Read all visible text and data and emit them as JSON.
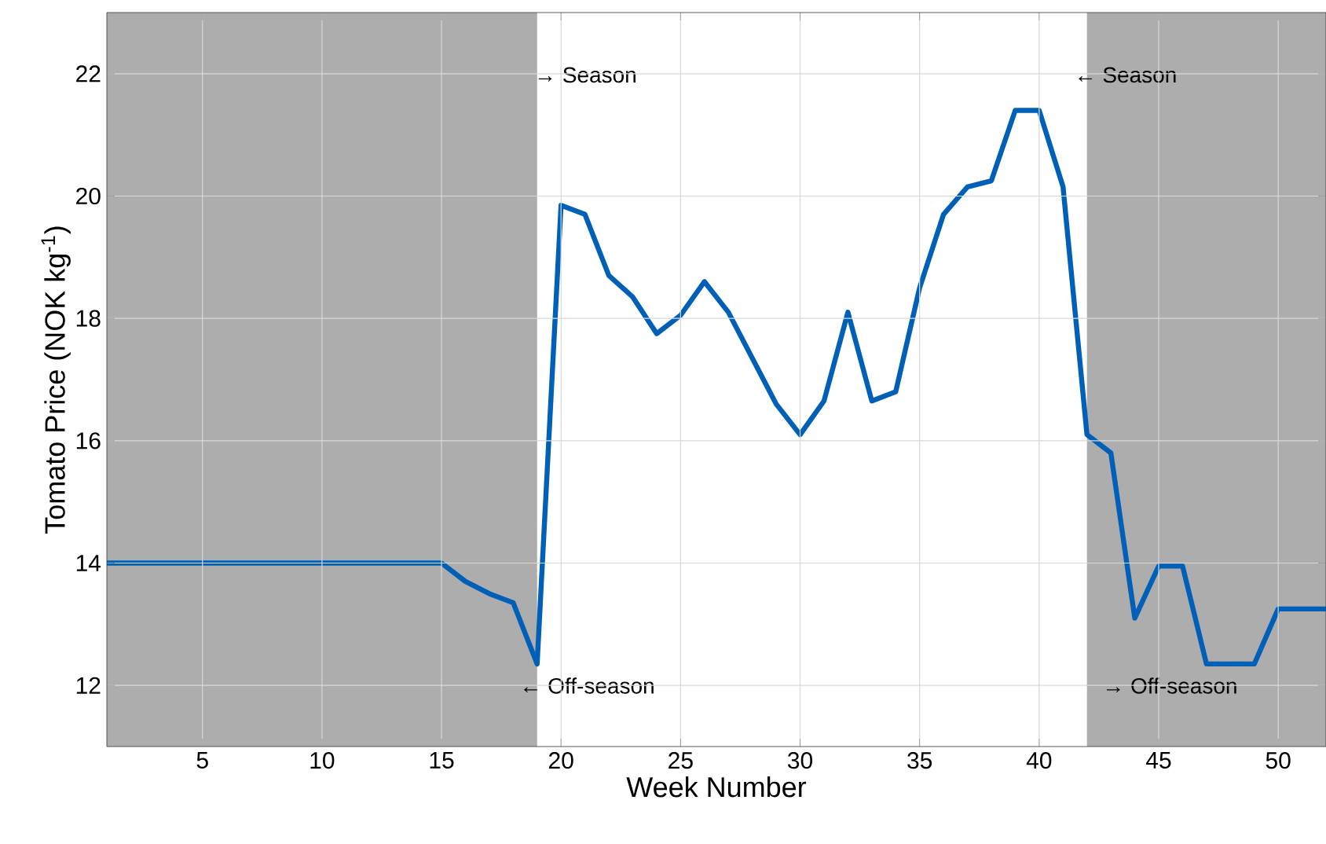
{
  "chart_data": {
    "type": "line",
    "xlabel": "Week Number",
    "ylabel": "Tomato Price (NOK kg$^{-1}$)",
    "x": [
      1,
      2,
      3,
      4,
      5,
      6,
      7,
      8,
      9,
      10,
      11,
      12,
      13,
      14,
      15,
      16,
      17,
      18,
      19,
      20,
      21,
      22,
      23,
      24,
      25,
      26,
      27,
      28,
      29,
      30,
      31,
      32,
      33,
      34,
      35,
      36,
      37,
      38,
      39,
      40,
      41,
      42,
      43,
      44,
      45,
      46,
      47,
      48,
      49,
      50,
      51,
      52
    ],
    "series": [
      {
        "color": "#0060b8",
        "values": [
          14,
          14,
          14,
          14,
          14,
          14,
          14,
          14,
          14,
          14,
          14,
          14,
          14,
          14,
          14,
          13.7,
          13.5,
          13.35,
          12.35,
          19.85,
          19.7,
          18.7,
          18.35,
          17.75,
          18.05,
          18.6,
          18.1,
          17.35,
          16.6,
          16.1,
          16.65,
          18.1,
          16.65,
          16.8,
          18.5,
          19.7,
          20.15,
          20.25,
          21.4,
          21.4,
          20.15,
          16.1,
          15.8,
          13.1,
          13.95,
          13.95,
          12.35,
          12.35,
          12.35,
          13.25,
          13.25,
          13.25
        ]
      }
    ],
    "xlim": [
      1,
      52
    ],
    "ylim": [
      11,
      23
    ],
    "xticks": [
      5,
      10,
      15,
      20,
      25,
      30,
      35,
      40,
      45,
      50
    ],
    "yticks": [
      12,
      14,
      16,
      18,
      20,
      22
    ],
    "grid": true,
    "marker": "none",
    "line_style": "solid",
    "bands": [
      {
        "axis": "x",
        "from": 1,
        "to": 19,
        "color": "#adadad"
      },
      {
        "axis": "x",
        "from": 42,
        "to": 52,
        "color": "#adadad"
      }
    ],
    "annotations": [
      "→ Season",
      "← Off-season",
      "← Season",
      "→ Off-season"
    ]
  }
}
